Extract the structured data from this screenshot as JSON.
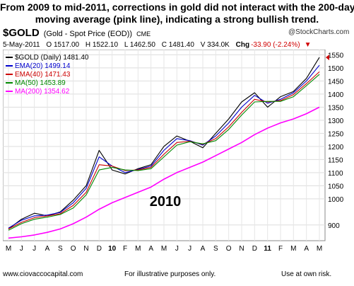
{
  "headline": {
    "line1": "From 2009 to mid-2011, corrections in gold did not interact with the 200-day",
    "line2": "moving average (pink line), indicating a strong bullish trend."
  },
  "ticker": {
    "symbol": "$GOLD",
    "name": "(Gold - Spot Price (EOD))",
    "exchange": "CME"
  },
  "quote": {
    "date": "5-May-2011",
    "open": "O 1517.00",
    "high": "H 1522.10",
    "low": "L 1462.50",
    "close": "C 1481.40",
    "volume": "V 334.0K",
    "chg_label": "Chg",
    "chg_value": "-33.90 (-2.24%)",
    "chg_arrow": "▼"
  },
  "brand": "@StockCharts.com",
  "legend": [
    {
      "label": "$GOLD (Daily) 1481.40",
      "color": "#000000"
    },
    {
      "label": "EMA(20) 1499.14",
      "color": "#0000cc"
    },
    {
      "label": "EMA(40) 1471.43",
      "color": "#cc0000"
    },
    {
      "label": "MA(50) 1453.89",
      "color": "#008800"
    },
    {
      "label": "MA(200) 1354.62",
      "color": "#ff00ff"
    }
  ],
  "annotation": "2010",
  "footer": {
    "left": "www.ciovaccocapital.com",
    "center": "For illustrative purposes only.",
    "right": "Use at own risk."
  },
  "chart_data": {
    "type": "line",
    "ylim": [
      840,
      1570
    ],
    "yticks": [
      900,
      1000,
      1050,
      1100,
      1150,
      1200,
      1250,
      1300,
      1350,
      1400,
      1450,
      1500,
      1550
    ],
    "xlabels": [
      "M",
      "J",
      "J",
      "A",
      "S",
      "O",
      "N",
      "D",
      "10",
      "F",
      "M",
      "A",
      "M",
      "J",
      "J",
      "A",
      "S",
      "O",
      "N",
      "D",
      "11",
      "F",
      "M",
      "A",
      "M"
    ],
    "bold_xlabels": [
      "10",
      "11"
    ],
    "grid": true,
    "legend_position": "top-left",
    "series": [
      {
        "name": "$GOLD (Daily)",
        "color": "#000000",
        "values": [
          885,
          922,
          945,
          935,
          950,
          995,
          1050,
          1185,
          1110,
          1095,
          1115,
          1130,
          1200,
          1240,
          1220,
          1195,
          1250,
          1305,
          1370,
          1405,
          1350,
          1390,
          1410,
          1460,
          1540
        ]
      },
      {
        "name": "EMA(20)",
        "color": "#0000cc",
        "values": [
          888,
          918,
          935,
          938,
          948,
          985,
          1040,
          1160,
          1125,
          1100,
          1112,
          1125,
          1185,
          1230,
          1222,
          1205,
          1240,
          1290,
          1350,
          1395,
          1365,
          1380,
          1405,
          1450,
          1510
        ]
      },
      {
        "name": "EMA(40)",
        "color": "#cc0000",
        "values": [
          885,
          910,
          928,
          935,
          943,
          975,
          1025,
          1130,
          1125,
          1108,
          1110,
          1120,
          1170,
          1215,
          1220,
          1208,
          1230,
          1275,
          1330,
          1380,
          1370,
          1375,
          1398,
          1440,
          1485
        ]
      },
      {
        "name": "MA(50)",
        "color": "#008800",
        "values": [
          880,
          905,
          922,
          930,
          940,
          965,
          1015,
          1110,
          1120,
          1110,
          1108,
          1115,
          1160,
          1205,
          1218,
          1210,
          1222,
          1265,
          1320,
          1370,
          1372,
          1372,
          1390,
          1432,
          1475
        ]
      },
      {
        "name": "MA(200)",
        "color": "#ff00ff",
        "values": [
          850,
          855,
          862,
          872,
          885,
          905,
          930,
          960,
          985,
          1005,
          1025,
          1045,
          1075,
          1100,
          1120,
          1140,
          1165,
          1190,
          1215,
          1245,
          1270,
          1290,
          1305,
          1325,
          1350
        ]
      }
    ]
  }
}
